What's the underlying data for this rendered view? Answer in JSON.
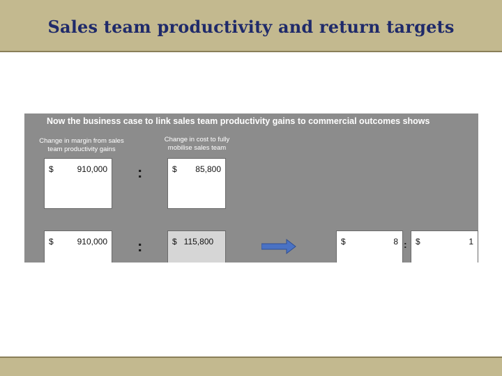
{
  "slide": {
    "title": "Sales team productivity and return targets"
  },
  "panel": {
    "heading": "Now the business case to link sales team productivity gains to commercial outcomes shows",
    "left_label": "Change in margin from sales\nteam productivity gains",
    "right_label": "Change in cost to fully\nmobilise sales team",
    "row1": {
      "margin_currency": "$",
      "margin_value": "910,000",
      "separator": ":",
      "cost_currency": "$",
      "cost_value": "85,800"
    },
    "row2": {
      "margin_currency": "$",
      "margin_value": "910,000",
      "separator": ":",
      "cost_text": "$   115,800",
      "ratio_left_currency": "$",
      "ratio_left_value": "8",
      "ratio_separator": ":",
      "ratio_right_currency": "$",
      "ratio_right_value": "1"
    }
  },
  "colors": {
    "header_band": "#c3b98f",
    "title_text": "#1f2a6a",
    "panel_bg": "#8c8c8c",
    "arrow_fill": "#4a72c4"
  },
  "icons": {
    "arrow": "right-arrow-icon"
  }
}
